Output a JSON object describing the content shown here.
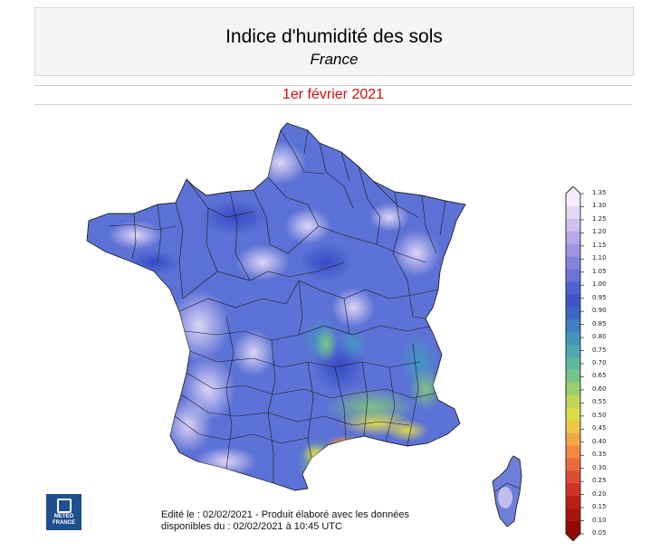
{
  "header": {
    "title": "Indice d'humidité des sols",
    "subtitle": "France"
  },
  "date_label": "1er février 2021",
  "legend": {
    "ticks": [
      "1.35",
      "1.30",
      "1.25",
      "1.20",
      "1.15",
      "1.10",
      "1.05",
      "1.00",
      "0.95",
      "0.90",
      "0.85",
      "0.80",
      "0.75",
      "0.70",
      "0.65",
      "0.60",
      "0.55",
      "0.50",
      "0.45",
      "0.40",
      "0.35",
      "0.30",
      "0.25",
      "0.20",
      "0.15",
      "0.10",
      "0.05"
    ],
    "colors": [
      "#f5ecfb",
      "#e4d7f5",
      "#cfc0ee",
      "#b7a8e8",
      "#9f94e2",
      "#8584dc",
      "#6d74d6",
      "#4f63d0",
      "#3f55c6",
      "#3d66c3",
      "#3f7fc2",
      "#4495be",
      "#4ea8b2",
      "#5eb79e",
      "#78c387",
      "#9bcd6c",
      "#bdd657",
      "#dcdc4b",
      "#ecc846",
      "#f1a844",
      "#ef8a42",
      "#e96a3c",
      "#dd4d33",
      "#ce3325",
      "#bb2015",
      "#a9150d",
      "#8f0a06"
    ],
    "colors_ascending_low_to_high": true
  },
  "map": {
    "region": "France",
    "dominant_color": "#5c72d6"
  },
  "logo": {
    "line1": "METEO",
    "line2": "FRANCE"
  },
  "footer": {
    "line1": "Edité le : 02/02/2021 - Produit élaboré avec les données",
    "line2": "disponibles du : 02/02/2021 à 10:45 UTC"
  }
}
